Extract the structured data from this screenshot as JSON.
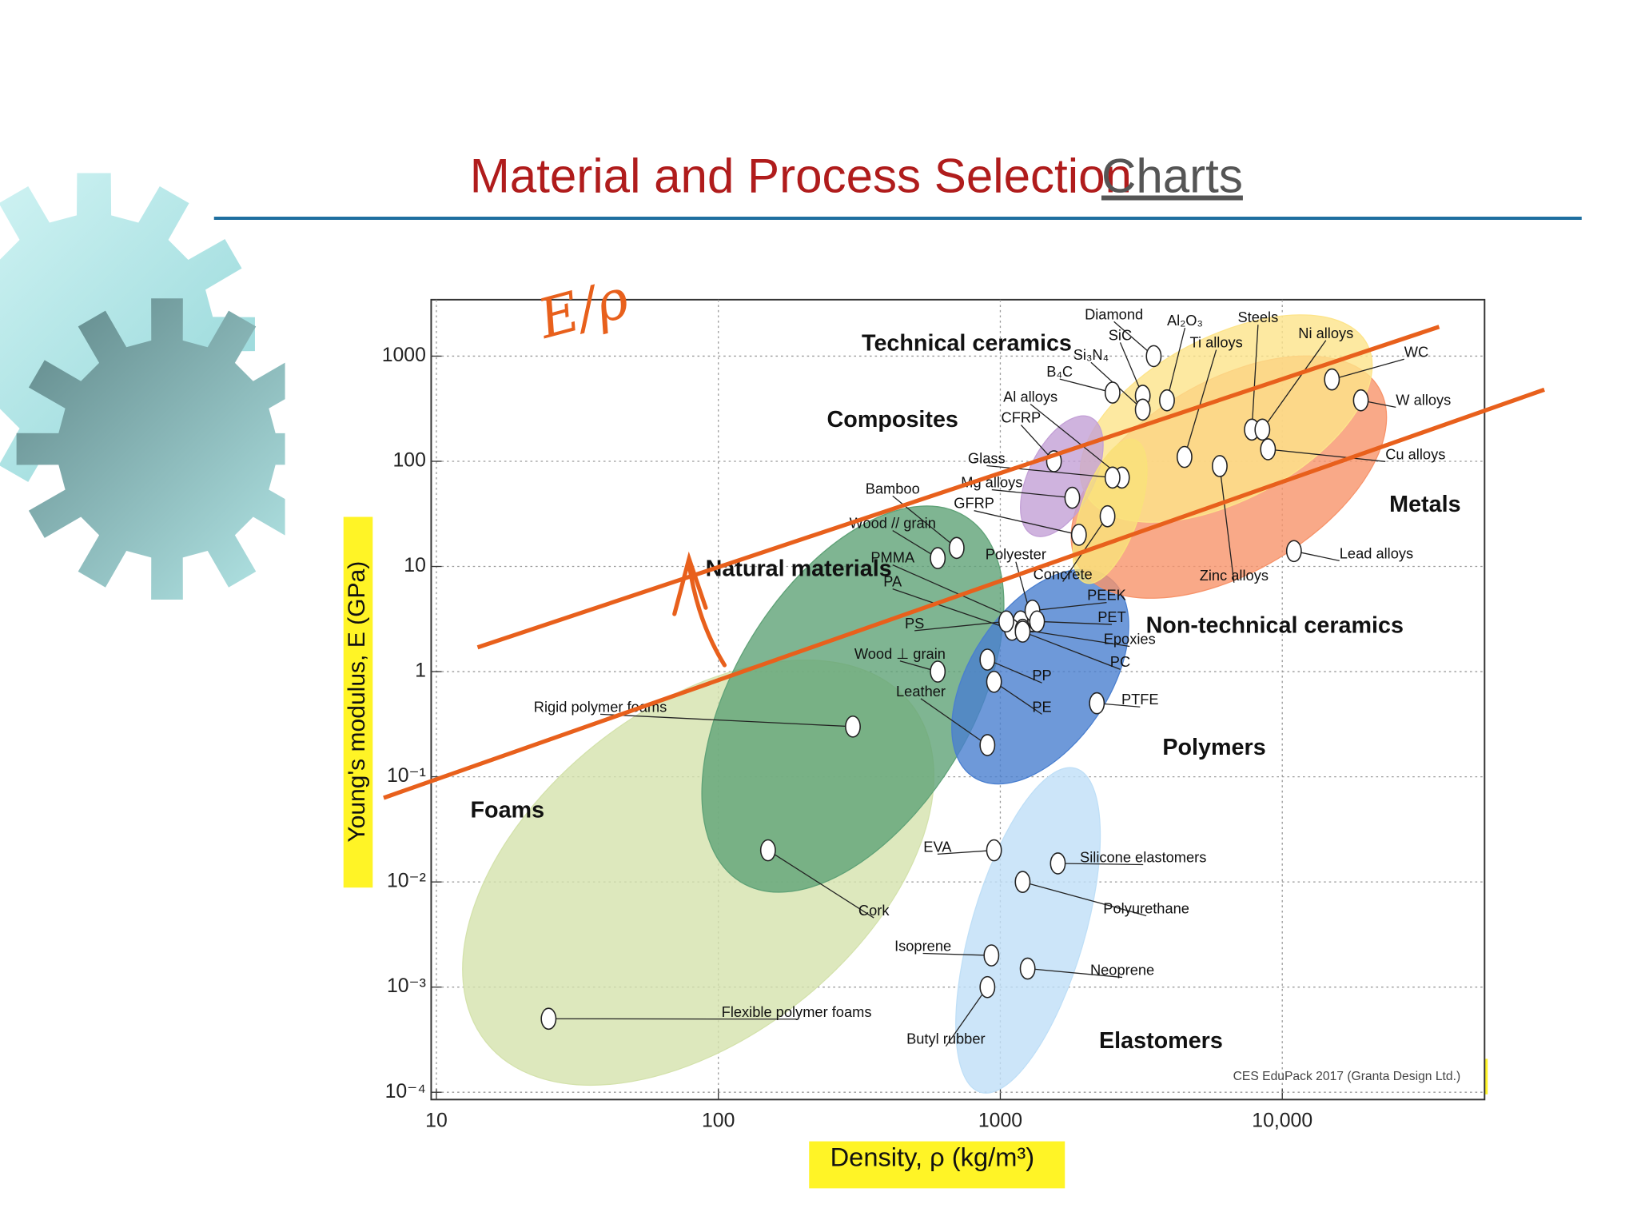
{
  "header": {
    "title": "Material and Process Selection",
    "link": "Charts"
  },
  "chart_data": {
    "type": "ashby",
    "xlabel": "Density, ρ (kg/m³)",
    "ylabel": "Young's modulus, E (GPa)",
    "log_scale": true,
    "grid": true,
    "xlim": [
      10,
      50000
    ],
    "ylim": [
      0.0001,
      3000
    ],
    "xticks": [
      10,
      100,
      1000,
      {
        "value": 10000,
        "label": "10,000"
      }
    ],
    "yticks": [
      {
        "value": 0.0001,
        "label": "10⁻⁴"
      },
      {
        "value": 0.001,
        "label": "10⁻³"
      },
      {
        "value": 0.01,
        "label": "10⁻²"
      },
      {
        "value": 0.1,
        "label": "10⁻¹"
      },
      1,
      10,
      100,
      1000
    ],
    "families": [
      {
        "name": "Foams",
        "color": "#d4e2ac",
        "density": [
          15,
          480
        ],
        "modulus": [
          0.0003,
          0.5
        ]
      },
      {
        "name": "Natural materials",
        "color": "#5fa277",
        "density": [
          120,
          750
        ],
        "modulus": [
          0.01,
          30
        ]
      },
      {
        "name": "Elastomers",
        "color": "#bfdff7",
        "density": [
          850,
          1850
        ],
        "modulus": [
          0.0001,
          0.12
        ]
      },
      {
        "name": "Polymers",
        "color": "#4a7fcf",
        "density": [
          800,
          2400
        ],
        "modulus": [
          0.1,
          8
        ]
      },
      {
        "name": "Metals",
        "color": "#f7936a",
        "density": [
          1900,
          22000
        ],
        "modulus": [
          10,
          500
        ]
      },
      {
        "name": "Technical ceramics",
        "color": "#fde48a",
        "density": [
          2000,
          20000
        ],
        "modulus": [
          50,
          1300
        ]
      },
      {
        "name": "Composites",
        "color": "#c3a0d6",
        "density": [
          1300,
          2100
        ],
        "modulus": [
          20,
          260
        ]
      },
      {
        "name": "Non-technical ceramics",
        "color": "#f9e27a",
        "density": [
          2000,
          3000
        ],
        "modulus": [
          7,
          160
        ]
      }
    ],
    "materials": [
      {
        "name": "Diamond",
        "density": 3500,
        "modulus": 1000
      },
      {
        "name": "SiC",
        "density": 3200,
        "modulus": 420
      },
      {
        "name": "Al₂O₃",
        "density": 3900,
        "modulus": 380
      },
      {
        "name": "Si₃N₄",
        "density": 3200,
        "modulus": 310
      },
      {
        "name": "B₄C",
        "density": 2500,
        "modulus": 450
      },
      {
        "name": "Steels",
        "density": 7800,
        "modulus": 200
      },
      {
        "name": "Ni alloys",
        "density": 8500,
        "modulus": 200
      },
      {
        "name": "Ti alloys",
        "density": 4500,
        "modulus": 110
      },
      {
        "name": "WC",
        "density": 15000,
        "modulus": 600
      },
      {
        "name": "W alloys",
        "density": 19000,
        "modulus": 380
      },
      {
        "name": "Cu alloys",
        "density": 8900,
        "modulus": 130
      },
      {
        "name": "Al alloys",
        "density": 2700,
        "modulus": 70
      },
      {
        "name": "CFRP",
        "density": 1550,
        "modulus": 100
      },
      {
        "name": "Glass",
        "density": 2500,
        "modulus": 70
      },
      {
        "name": "Mg alloys",
        "density": 1800,
        "modulus": 45
      },
      {
        "name": "GFRP",
        "density": 1900,
        "modulus": 20
      },
      {
        "name": "Bamboo",
        "density": 700,
        "modulus": 15
      },
      {
        "name": "Wood // grain",
        "density": 600,
        "modulus": 12
      },
      {
        "name": "Zinc alloys",
        "density": 6000,
        "modulus": 90
      },
      {
        "name": "Lead alloys",
        "density": 11000,
        "modulus": 14
      },
      {
        "name": "Concrete",
        "density": 2400,
        "modulus": 30
      },
      {
        "name": "Polyester",
        "density": 1300,
        "modulus": 3
      },
      {
        "name": "PMMA",
        "density": 1180,
        "modulus": 3
      },
      {
        "name": "PA",
        "density": 1100,
        "modulus": 2.5
      },
      {
        "name": "PEEK",
        "density": 1300,
        "modulus": 3.8
      },
      {
        "name": "PET",
        "density": 1350,
        "modulus": 3
      },
      {
        "name": "Epoxies",
        "density": 1200,
        "modulus": 2.5
      },
      {
        "name": "PS",
        "density": 1050,
        "modulus": 3
      },
      {
        "name": "PC",
        "density": 1200,
        "modulus": 2.4
      },
      {
        "name": "Wood ⊥ grain",
        "density": 600,
        "modulus": 1
      },
      {
        "name": "PP",
        "density": 900,
        "modulus": 1.3
      },
      {
        "name": "PE",
        "density": 950,
        "modulus": 0.8
      },
      {
        "name": "PTFE",
        "density": 2200,
        "modulus": 0.5
      },
      {
        "name": "Leather",
        "density": 900,
        "modulus": 0.2
      },
      {
        "name": "Rigid polymer foams",
        "density": 300,
        "modulus": 0.3
      },
      {
        "name": "Cork",
        "density": 150,
        "modulus": 0.02
      },
      {
        "name": "EVA",
        "density": 950,
        "modulus": 0.02
      },
      {
        "name": "Silicone elastomers",
        "density": 1600,
        "modulus": 0.015
      },
      {
        "name": "Polyurethane",
        "density": 1200,
        "modulus": 0.01
      },
      {
        "name": "Isoprene",
        "density": 930,
        "modulus": 0.002
      },
      {
        "name": "Neoprene",
        "density": 1250,
        "modulus": 0.0015
      },
      {
        "name": "Butyl rubber",
        "density": 900,
        "modulus": 0.001
      },
      {
        "name": "Flexible polymer foams",
        "density": 25,
        "modulus": 0.0005
      }
    ],
    "guide_color": "#e8601c",
    "guide_lines": [
      {
        "x": [
          14,
          36000
        ],
        "y": [
          1.7,
          1900
        ]
      },
      {
        "x": [
          6.5,
          85000
        ],
        "y": [
          0.063,
          480
        ]
      }
    ],
    "annotation": "E/ρ",
    "source": "CES EduPack 2017 (Granta Design Ltd.)"
  }
}
